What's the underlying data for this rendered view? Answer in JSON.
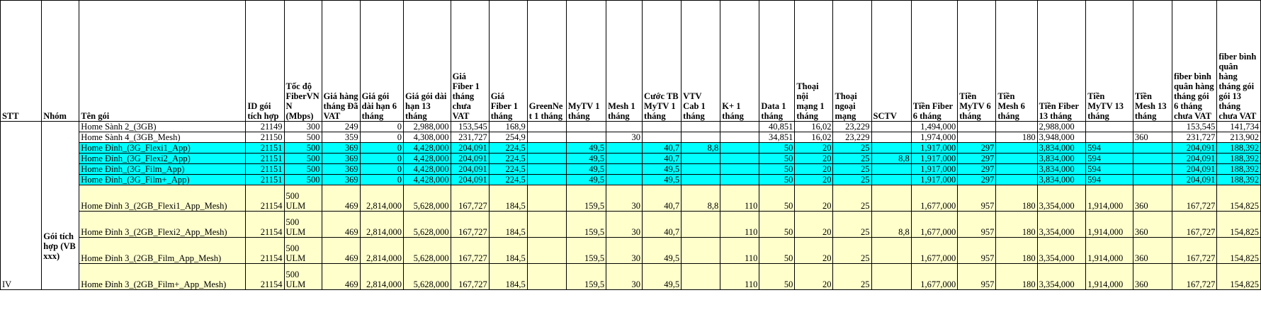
{
  "headers": {
    "stt": "STT",
    "nhom": "Nhóm",
    "ten_goi": "Tên gói",
    "id_goi": "ID gói tích hợp",
    "toc_do": "Tốc độ FiberVNN (Mbps)",
    "gia_hang_thang": "Giá hàng tháng Đã VAT",
    "gia_6": "Giá gói dài hạn 6 tháng",
    "gia_13": "Giá gói dài hạn 13 tháng",
    "fiber1_chua_vat": "Giá Fiber 1 tháng chưa VAT",
    "gia_fiber1": "Giá Fiber 1 tháng",
    "greennet": "GreenNet 1 tháng",
    "mytv1": "MyTV 1 tháng",
    "mesh1": "Mesh 1 tháng",
    "cuoc_mytv": "Cước TB MyTV 1 tháng",
    "vtv_cab": "VTV Cab 1 tháng",
    "kplus": "K+ 1 tháng",
    "data": "Data 1 tháng",
    "thoai_noi": "Thoại nội mạng 1 tháng",
    "thoai_ngoai": "Thoại ngoại mạng",
    "sctv": "SCTV",
    "tien_fiber6": "Tiền Fiber 6 tháng",
    "tien_mytv6": "Tiền MyTV 6 tháng",
    "tien_mesh6": "Tiền Mesh 6 tháng",
    "tien_fiber13": "Tiền Fiber 13 tháng",
    "tien_mytv13": "Tiền MyTV 13 tháng",
    "tien_mesh13": "Tiền Mesh 13 tháng",
    "fiber_bq6": "fiber bình quân hàng tháng gói 6 tháng chưa VAT",
    "fiber_bq13": "fiber bình quân hàng tháng gói gói 13 tháng chưa VAT"
  },
  "group": {
    "stt": "IV",
    "nhom": "Gói tích hợp (VB xxx)"
  },
  "rows": [
    {
      "style": "wht",
      "h": "r1",
      "c": [
        "Home Sành 2_(3GB)",
        "21149",
        "300",
        "249",
        "0",
        "2,988,000",
        "153,545",
        "168,9",
        "",
        "",
        "",
        "",
        "",
        "",
        "40,851",
        "16,02",
        "23,229",
        "",
        "1,494,000",
        "",
        "",
        "2,988,000",
        "",
        "",
        "153,545",
        "141,734"
      ]
    },
    {
      "style": "wht",
      "h": "r1",
      "c": [
        "Home Sành 4_(3GB_Mesh)",
        "21150",
        "500",
        "359",
        "0",
        "4,308,000",
        "231,727",
        "254,9",
        "",
        "",
        "30",
        "",
        "",
        "",
        "34,851",
        "16,02",
        "23,229",
        "",
        "1,974,000",
        "",
        "180",
        "3,948,000",
        "",
        "360",
        "231,727",
        "213,902"
      ]
    },
    {
      "style": "cyan",
      "h": "r1",
      "c": [
        "Home Đỉnh_(3G_Flexi1_App)",
        "21151",
        "500",
        "369",
        "0",
        "4,428,000",
        "204,091",
        "224,5",
        "",
        "49,5",
        "",
        "40,7",
        "8,8",
        "",
        "50",
        "20",
        "25",
        "",
        "1,917,000",
        "297",
        "",
        "3,834,000",
        "594",
        "",
        "204,091",
        "188,392"
      ]
    },
    {
      "style": "cyan",
      "h": "r1",
      "c": [
        "Home Đỉnh_(3G_Flexi2_App)",
        "21151",
        "500",
        "369",
        "0",
        "4,428,000",
        "204,091",
        "224,5",
        "",
        "49,5",
        "",
        "40,7",
        "",
        "",
        "50",
        "20",
        "25",
        "8,8",
        "1,917,000",
        "297",
        "",
        "3,834,000",
        "594",
        "",
        "204,091",
        "188,392"
      ]
    },
    {
      "style": "cyan",
      "h": "r1",
      "c": [
        "Home Đỉnh_(3G_Film_App)",
        "21151",
        "500",
        "369",
        "0",
        "4,428,000",
        "204,091",
        "224,5",
        "",
        "49,5",
        "",
        "49,5",
        "",
        "",
        "50",
        "20",
        "25",
        "",
        "1,917,000",
        "297",
        "",
        "3,834,000",
        "594",
        "",
        "204,091",
        "188,392"
      ]
    },
    {
      "style": "cyan",
      "h": "r1",
      "c": [
        "Home Đỉnh_(3G_Film+_App)",
        "21151",
        "500",
        "369",
        "0",
        "4,428,000",
        "204,091",
        "224,5",
        "",
        "49,5",
        "",
        "49,5",
        "",
        "",
        "50",
        "20",
        "25",
        "",
        "1,917,000",
        "297",
        "",
        "3,834,000",
        "594",
        "",
        "204,091",
        "188,392"
      ]
    },
    {
      "style": "yel",
      "h": "r2",
      "c": [
        "Home Đỉnh 3_(2GB_Flexi1_App_Mesh)",
        "21154",
        "500 ULM",
        "469",
        "2,814,000",
        "5,628,000",
        "167,727",
        "184,5",
        "",
        "159,5",
        "30",
        "40,7",
        "8,8",
        "110",
        "50",
        "20",
        "25",
        "",
        "1,677,000",
        "957",
        "180",
        "3,354,000",
        "1,914,000",
        "360",
        "167,727",
        "154,825"
      ]
    },
    {
      "style": "yel",
      "h": "r2",
      "c": [
        "Home Đỉnh 3_(2GB_Flexi2_App_Mesh)",
        "21154",
        "500 ULM",
        "469",
        "2,814,000",
        "5,628,000",
        "167,727",
        "184,5",
        "",
        "159,5",
        "30",
        "40,7",
        "",
        "110",
        "50",
        "20",
        "25",
        "8,8",
        "1,677,000",
        "957",
        "180",
        "3,354,000",
        "1,914,000",
        "360",
        "167,727",
        "154,825"
      ]
    },
    {
      "style": "yel",
      "h": "r2",
      "c": [
        "Home Đỉnh 3_(2GB_Film_App_Mesh)",
        "21154",
        "500 ULM",
        "469",
        "2,814,000",
        "5,628,000",
        "167,727",
        "184,5",
        "",
        "159,5",
        "30",
        "49,5",
        "",
        "110",
        "50",
        "20",
        "25",
        "",
        "1,677,000",
        "957",
        "180",
        "3,354,000",
        "1,914,000",
        "360",
        "167,727",
        "154,825"
      ]
    },
    {
      "style": "yel",
      "h": "r2",
      "c": [
        "Home Đỉnh 3_(2GB_Film+_App_Mesh)",
        "21154",
        "500 ULM",
        "469",
        "2,814,000",
        "5,628,000",
        "167,727",
        "184,5",
        "",
        "159,5",
        "30",
        "49,5",
        "",
        "110",
        "50",
        "20",
        "25",
        "",
        "1,677,000",
        "957",
        "180",
        "3,354,000",
        "1,914,000",
        "360",
        "167,727",
        "154,825"
      ]
    }
  ]
}
